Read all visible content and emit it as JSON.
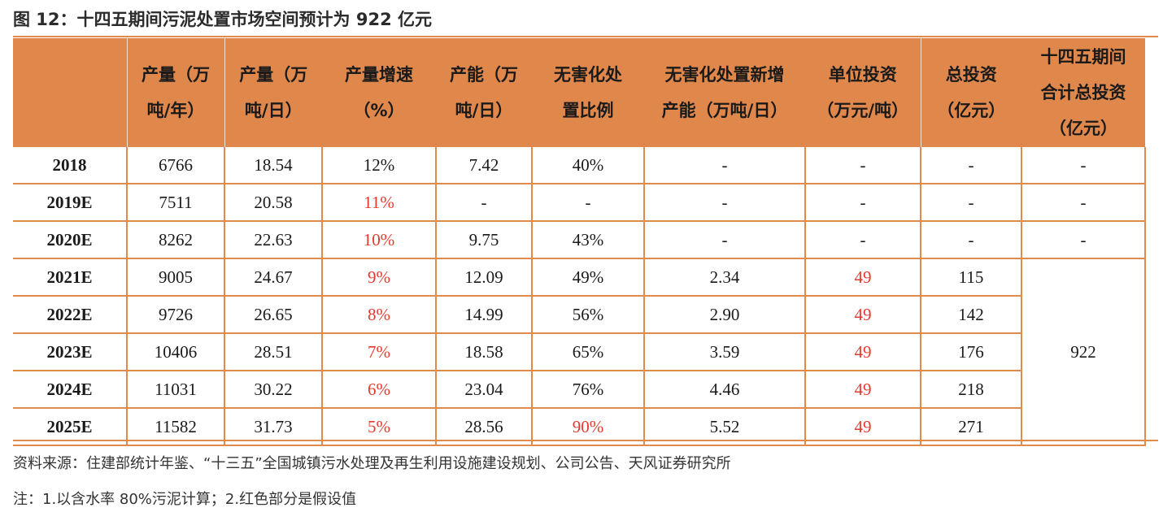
{
  "title": "图 12：十四五期间污泥处置市场空间预计为 922 亿元",
  "headers": {
    "c0": "",
    "c1": "产量（万\n吨/年）",
    "c2": "产量（万\n吨/日）",
    "c3": "产量增速\n（%）",
    "c4": "产能（万\n吨/日）",
    "c5": "无害化处\n置比例",
    "c6": "无害化处置新增\n产能（万吨/日）",
    "c7": "单位投资\n（万元/吨）",
    "c8": "总投资\n（亿元）",
    "c9": "十四五期间\n合计总投资\n（亿元）"
  },
  "rows": [
    {
      "year": "2018",
      "c1": "6766",
      "c2": "18.54",
      "c3": "12%",
      "c4": "7.42",
      "c5": "40%",
      "c6": "-",
      "c7": "-",
      "c8": "-",
      "c9": "-"
    },
    {
      "year": "2019E",
      "c1": "7511",
      "c2": "20.58",
      "c3": "11%",
      "c4": "-",
      "c5": "-",
      "c6": "-",
      "c7": "-",
      "c8": "-",
      "c9": "-"
    },
    {
      "year": "2020E",
      "c1": "8262",
      "c2": "22.63",
      "c3": "10%",
      "c4": "9.75",
      "c5": "43%",
      "c6": "-",
      "c7": "-",
      "c8": "-",
      "c9": "-"
    },
    {
      "year": "2021E",
      "c1": "9005",
      "c2": "24.67",
      "c3": "9%",
      "c4": "12.09",
      "c5": "49%",
      "c6": "2.34",
      "c7": "49",
      "c8": "115"
    },
    {
      "year": "2022E",
      "c1": "9726",
      "c2": "26.65",
      "c3": "8%",
      "c4": "14.99",
      "c5": "56%",
      "c6": "2.90",
      "c7": "49",
      "c8": "142"
    },
    {
      "year": "2023E",
      "c1": "10406",
      "c2": "28.51",
      "c3": "7%",
      "c4": "18.58",
      "c5": "65%",
      "c6": "3.59",
      "c7": "49",
      "c8": "176"
    },
    {
      "year": "2024E",
      "c1": "11031",
      "c2": "30.22",
      "c3": "6%",
      "c4": "23.04",
      "c5": "76%",
      "c6": "4.46",
      "c7": "49",
      "c8": "218"
    },
    {
      "year": "2025E",
      "c1": "11582",
      "c2": "31.73",
      "c3": "5%",
      "c4": "28.56",
      "c5": "90%",
      "c6": "5.52",
      "c7": "49",
      "c8": "271"
    }
  ],
  "merged_total": "922",
  "colors": {
    "accent": "#e0874b",
    "red": "#e53a2b"
  },
  "source": "资料来源：住建部统计年鉴、“十三五”全国城镇污水处理及再生利用设施建设规划、公司公告、天风证券研究所",
  "note": "注：1.以含水率 80%污泥计算；2.红色部分是假设值"
}
